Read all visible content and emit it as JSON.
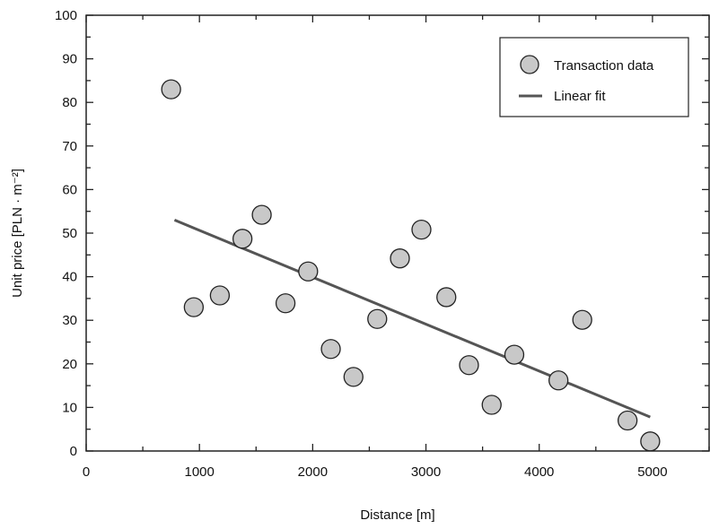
{
  "chart_data": {
    "type": "scatter",
    "xlabel": "Distance [m]",
    "ylabel": "Unit price [PLN · m⁻²]",
    "xlim": [
      0,
      5500
    ],
    "ylim": [
      0,
      100
    ],
    "x_ticks": [
      0,
      1000,
      2000,
      3000,
      4000,
      5000
    ],
    "y_ticks": [
      0,
      10,
      20,
      30,
      40,
      50,
      60,
      70,
      80,
      90,
      100
    ],
    "legend_position": "top-right",
    "series": [
      {
        "name": "Transaction data",
        "kind": "scatter",
        "color": "#c8c8c8",
        "x": [
          750,
          950,
          1180,
          1380,
          1550,
          1760,
          1960,
          2160,
          2360,
          2570,
          2770,
          2960,
          3180,
          3380,
          3580,
          3780,
          4170,
          4380,
          4780,
          4980
        ],
        "y": [
          83,
          33,
          35.7,
          48.7,
          54.2,
          33.9,
          41.2,
          23.4,
          17,
          30.3,
          44.2,
          50.8,
          35.3,
          19.7,
          10.6,
          22.1,
          16.2,
          30.1,
          7,
          2.2
        ]
      },
      {
        "name": "Linear fit",
        "kind": "line",
        "color": "#555555",
        "x": [
          780,
          4980
        ],
        "y": [
          53,
          7.8
        ]
      }
    ]
  }
}
